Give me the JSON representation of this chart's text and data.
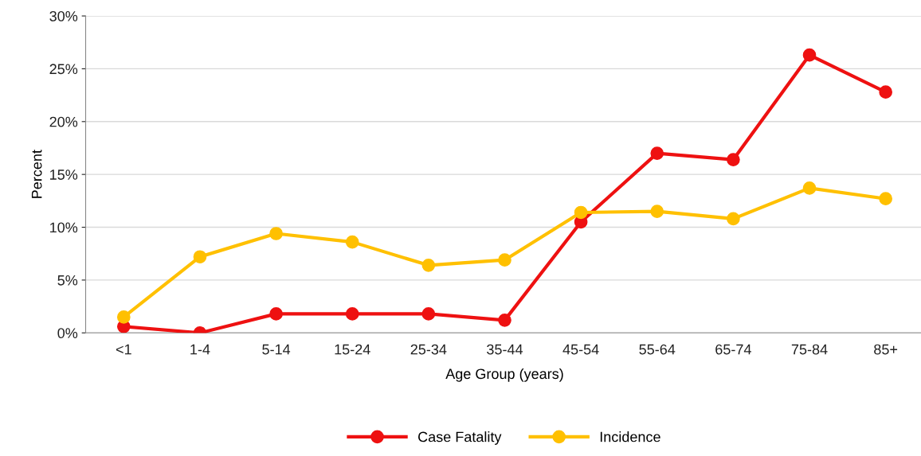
{
  "chart_data": {
    "type": "line",
    "xlabel": "Age Group (years)",
    "ylabel": "Percent",
    "categories": [
      "<1",
      "1-4",
      "5-14",
      "15-24",
      "25-34",
      "35-44",
      "45-54",
      "55-64",
      "65-74",
      "75-84",
      "85+"
    ],
    "series": [
      {
        "name": "Case Fatality",
        "color": "#ee1111",
        "values": [
          0.6,
          0,
          1.8,
          1.8,
          1.8,
          1.2,
          10.5,
          17.0,
          16.4,
          26.3,
          22.8
        ]
      },
      {
        "name": "Incidence",
        "color": "#ffc000",
        "values": [
          1.5,
          7.2,
          9.4,
          8.6,
          6.4,
          6.9,
          11.4,
          11.5,
          10.8,
          13.7,
          12.7
        ]
      }
    ],
    "ylim": [
      0,
      30
    ],
    "yticks": [
      {
        "value": 0,
        "label": "0%"
      },
      {
        "value": 5,
        "label": "5%"
      },
      {
        "value": 10,
        "label": "10%"
      },
      {
        "value": 15,
        "label": "15%"
      },
      {
        "value": 20,
        "label": "20%"
      },
      {
        "value": 25,
        "label": "25%"
      },
      {
        "value": 30,
        "label": "30%"
      }
    ],
    "grid": "y",
    "legend": "bottom",
    "marker": "circle",
    "line_style": "solid"
  }
}
